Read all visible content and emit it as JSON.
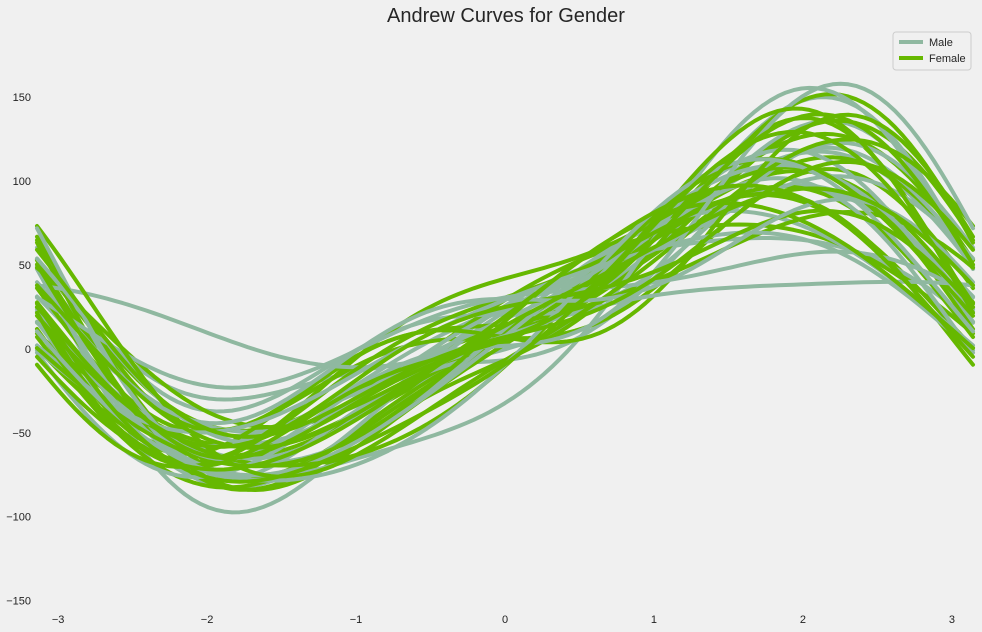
{
  "chart_data": {
    "type": "line",
    "subtype": "andrews-curves",
    "title": "Andrew Curves for Gender",
    "xlabel": "",
    "ylabel": "",
    "xlim": [
      -3.14159,
      3.14159
    ],
    "ylim": [
      -152,
      190
    ],
    "x_ticks": [
      -3,
      -2,
      -1,
      0,
      1,
      2,
      3
    ],
    "x_tick_labels": [
      "−3",
      "−2",
      "−1",
      "0",
      "1",
      "2",
      "3"
    ],
    "y_ticks": [
      -150,
      -100,
      -50,
      0,
      50,
      100,
      150
    ],
    "y_tick_labels": [
      "−150",
      "−100",
      "−50",
      "0",
      "50",
      "100",
      "150"
    ],
    "grid": false,
    "legend": {
      "placement": "top-right",
      "entries": [
        {
          "name": "Male",
          "color": "#8fb8a0"
        },
        {
          "name": "Female",
          "color": "#66b800"
        }
      ]
    },
    "series": [
      {
        "name": "Male",
        "color": "#8fb8a0",
        "curves": [
          {
            "a0": 45,
            "a1": 75,
            "b1": -12,
            "a2": -20,
            "b2": 5
          },
          {
            "a0": 30,
            "a1": 70,
            "b1": -10,
            "a2": -10,
            "b2": 0
          },
          {
            "a0": 25,
            "a1": 100,
            "b1": -20,
            "a2": -30,
            "b2": 10
          },
          {
            "a0": 40,
            "a1": 60,
            "b1": -30,
            "a2": -25,
            "b2": -5
          },
          {
            "a0": 20,
            "a1": 85,
            "b1": 0,
            "a2": -15,
            "b2": 8
          },
          {
            "a0": 35,
            "a1": 95,
            "b1": -25,
            "a2": -35,
            "b2": 0
          },
          {
            "a0": 15,
            "a1": 65,
            "b1": 5,
            "a2": -5,
            "b2": 10
          },
          {
            "a0": 30,
            "a1": 80,
            "b1": -5,
            "a2": -20,
            "b2": -10
          },
          {
            "a0": 50,
            "a1": 60,
            "b1": -20,
            "a2": -30,
            "b2": 5
          },
          {
            "a0": 10,
            "a1": 75,
            "b1": 5,
            "a2": 0,
            "b2": 0
          },
          {
            "a0": 25,
            "a1": 105,
            "b1": -40,
            "a2": -25,
            "b2": -10
          },
          {
            "a0": 38,
            "a1": 70,
            "b1": -15,
            "a2": -15,
            "b2": 12
          },
          {
            "a0": 22,
            "a1": 90,
            "b1": -8,
            "a2": -10,
            "b2": 0
          },
          {
            "a0": 18,
            "a1": 80,
            "b1": 10,
            "a2": -20,
            "b2": -5
          },
          {
            "a0": 28,
            "a1": 20,
            "b1": -15,
            "a2": 5,
            "b2": 3
          },
          {
            "a0": 32,
            "a1": 35,
            "b1": 0,
            "a2": -10,
            "b2": 8
          },
          {
            "a0": 20,
            "a1": 55,
            "b1": 15,
            "a2": -10,
            "b2": 0
          },
          {
            "a0": 45,
            "a1": 85,
            "b1": -35,
            "a2": -40,
            "b2": 5
          },
          {
            "a0": 12,
            "a1": 95,
            "b1": -10,
            "a2": -5,
            "b2": -8
          },
          {
            "a0": 35,
            "a1": 50,
            "b1": -5,
            "a2": -25,
            "b2": 10
          }
        ]
      },
      {
        "name": "Female",
        "color": "#66b800",
        "curves": [
          {
            "a0": 40,
            "a1": 70,
            "b1": -20,
            "a2": -20,
            "b2": 5
          },
          {
            "a0": 25,
            "a1": 80,
            "b1": -10,
            "a2": -15,
            "b2": 0
          },
          {
            "a0": 35,
            "a1": 90,
            "b1": -30,
            "a2": -25,
            "b2": 10
          },
          {
            "a0": 15,
            "a1": 75,
            "b1": 5,
            "a2": -10,
            "b2": -5
          },
          {
            "a0": 30,
            "a1": 60,
            "b1": -15,
            "a2": -30,
            "b2": 0
          },
          {
            "a0": 28,
            "a1": 95,
            "b1": -25,
            "a2": -20,
            "b2": 8
          },
          {
            "a0": 20,
            "a1": 65,
            "b1": 10,
            "a2": -5,
            "b2": 5
          },
          {
            "a0": 42,
            "a1": 80,
            "b1": -5,
            "a2": -35,
            "b2": -10
          },
          {
            "a0": 10,
            "a1": 85,
            "b1": 0,
            "a2": -15,
            "b2": 0
          },
          {
            "a0": 33,
            "a1": 100,
            "b1": -35,
            "a2": -30,
            "b2": 5
          },
          {
            "a0": 26,
            "a1": 55,
            "b1": -20,
            "a2": -10,
            "b2": 10
          },
          {
            "a0": 38,
            "a1": 75,
            "b1": 15,
            "a2": -25,
            "b2": 0
          },
          {
            "a0": 18,
            "a1": 90,
            "b1": -15,
            "a2": -5,
            "b2": -8
          },
          {
            "a0": 45,
            "a1": 65,
            "b1": -30,
            "a2": -40,
            "b2": 5
          },
          {
            "a0": 22,
            "a1": 70,
            "b1": 20,
            "a2": -20,
            "b2": -5
          },
          {
            "a0": 30,
            "a1": 85,
            "b1": -40,
            "a2": -15,
            "b2": 12
          },
          {
            "a0": 12,
            "a1": 78,
            "b1": 8,
            "a2": 0,
            "b2": 0
          },
          {
            "a0": 36,
            "a1": 92,
            "b1": -8,
            "a2": -30,
            "b2": -12
          },
          {
            "a0": 24,
            "a1": 60,
            "b1": 0,
            "a2": -20,
            "b2": 8
          },
          {
            "a0": 40,
            "a1": 88,
            "b1": -22,
            "a2": -28,
            "b2": 0
          },
          {
            "a0": 28,
            "a1": 72,
            "b1": -12,
            "a2": -12,
            "b2": 6
          },
          {
            "a0": 16,
            "a1": 82,
            "b1": 12,
            "a2": -8,
            "b2": -4
          },
          {
            "a0": 34,
            "a1": 66,
            "b1": -26,
            "a2": -22,
            "b2": 9
          },
          {
            "a0": 21,
            "a1": 98,
            "b1": -18,
            "a2": -18,
            "b2": -6
          }
        ]
      }
    ]
  }
}
